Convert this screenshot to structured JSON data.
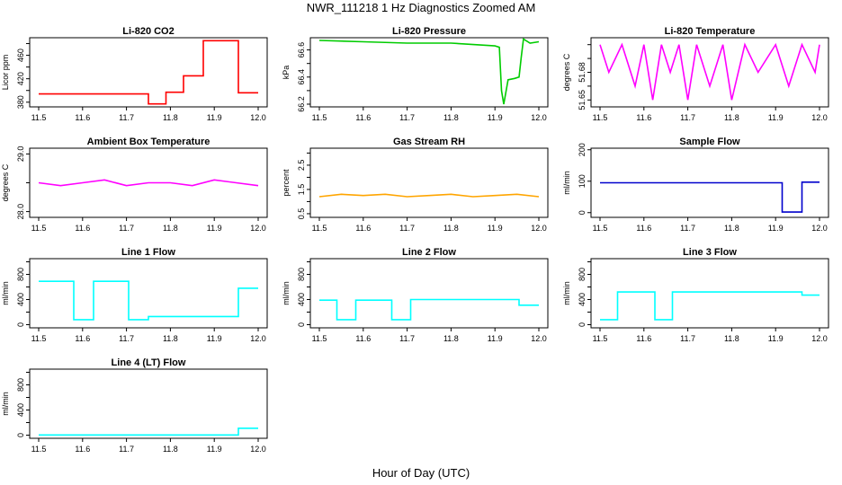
{
  "title": "NWR_111218  1 Hz Diagnostics Zoomed AM",
  "xlabel": "Hour of Day (UTC)",
  "chart_data": [
    {
      "type": "line",
      "title": "Li-820 CO2",
      "ylabel": "Licor ppm",
      "color": "#ff0000",
      "xlim": [
        11.5,
        12.0
      ],
      "xticks": [
        "11.5",
        "11.6",
        "11.7",
        "11.8",
        "11.9",
        "12.0"
      ],
      "ylim": [
        372,
        490
      ],
      "yticks": [
        380,
        400,
        420,
        440,
        460,
        480
      ],
      "yticklabels": [
        "380",
        "",
        "420",
        "",
        "460",
        ""
      ],
      "x": [
        11.5,
        11.75,
        11.75,
        11.79,
        11.79,
        11.83,
        11.83,
        11.875,
        11.875,
        11.955,
        11.955,
        12.0
      ],
      "y": [
        394,
        394,
        377,
        377,
        397,
        397,
        425,
        425,
        485,
        485,
        396,
        396
      ]
    },
    {
      "type": "line",
      "title": "Li-820 Pressure",
      "ylabel": "kPa",
      "color": "#00cc00",
      "xlim": [
        11.5,
        12.0
      ],
      "xticks": [
        "11.5",
        "11.6",
        "11.7",
        "11.8",
        "11.9",
        "12.0"
      ],
      "ylim": [
        66.18,
        66.69
      ],
      "yticks": [
        66.2,
        66.3,
        66.4,
        66.5,
        66.6
      ],
      "yticklabels": [
        "66.2",
        "",
        "66.4",
        "",
        "66.6"
      ],
      "x": [
        11.5,
        11.6,
        11.7,
        11.8,
        11.9,
        11.91,
        11.915,
        11.92,
        11.93,
        11.945,
        11.955,
        11.96,
        11.965,
        11.98,
        12.0
      ],
      "y": [
        66.67,
        66.66,
        66.65,
        66.65,
        66.63,
        66.62,
        66.3,
        66.2,
        66.38,
        66.39,
        66.4,
        66.55,
        66.68,
        66.65,
        66.66
      ]
    },
    {
      "type": "line",
      "title": "Li-820 Temperature",
      "ylabel": "degrees C",
      "color": "#ff00ff",
      "xlim": [
        11.5,
        12.0
      ],
      "xticks": [
        "11.5",
        "11.6",
        "11.7",
        "11.8",
        "11.9",
        "12.0"
      ],
      "ylim": [
        51.645,
        51.695
      ],
      "yticks": [
        51.65,
        51.66,
        51.67,
        51.68,
        51.69
      ],
      "yticklabels": [
        "51.65",
        "",
        "51.68",
        "",
        ""
      ],
      "x": [
        11.5,
        11.52,
        11.55,
        11.58,
        11.6,
        11.62,
        11.64,
        11.66,
        11.68,
        11.7,
        11.72,
        11.75,
        11.78,
        11.8,
        11.83,
        11.86,
        11.9,
        11.93,
        11.96,
        11.99,
        12.0
      ],
      "y": [
        51.69,
        51.67,
        51.69,
        51.66,
        51.69,
        51.65,
        51.69,
        51.67,
        51.69,
        51.65,
        51.69,
        51.66,
        51.69,
        51.65,
        51.69,
        51.67,
        51.69,
        51.66,
        51.69,
        51.67,
        51.69
      ]
    },
    {
      "type": "line",
      "title": "Ambient Box Temperature",
      "ylabel": "degrees C",
      "color": "#ff00ff",
      "xlim": [
        11.5,
        12.0
      ],
      "xticks": [
        "11.5",
        "11.6",
        "11.7",
        "11.8",
        "11.9",
        "12.0"
      ],
      "ylim": [
        27.9,
        29.1
      ],
      "yticks": [
        28.0,
        28.5,
        29.0
      ],
      "yticklabels": [
        "28.0",
        "",
        "29.0"
      ],
      "x": [
        11.5,
        11.55,
        11.6,
        11.65,
        11.7,
        11.75,
        11.8,
        11.85,
        11.9,
        11.95,
        12.0
      ],
      "y": [
        28.5,
        28.45,
        28.5,
        28.55,
        28.45,
        28.5,
        28.5,
        28.45,
        28.55,
        28.5,
        28.45
      ]
    },
    {
      "type": "line",
      "title": "Gas Stream RH",
      "ylabel": "percent",
      "color": "#ffa500",
      "xlim": [
        11.5,
        12.0
      ],
      "xticks": [
        "11.5",
        "11.6",
        "11.7",
        "11.8",
        "11.9",
        "12.0"
      ],
      "ylim": [
        0.35,
        3.2
      ],
      "yticks": [
        0.5,
        1.0,
        1.5,
        2.0,
        2.5,
        3.0
      ],
      "yticklabels": [
        "0.5",
        "",
        "1.5",
        "",
        "2.5",
        ""
      ],
      "x": [
        11.5,
        11.55,
        11.6,
        11.65,
        11.7,
        11.75,
        11.8,
        11.85,
        11.9,
        11.95,
        12.0
      ],
      "y": [
        1.2,
        1.3,
        1.25,
        1.3,
        1.2,
        1.25,
        1.3,
        1.2,
        1.25,
        1.3,
        1.2
      ]
    },
    {
      "type": "line",
      "title": "Sample Flow",
      "ylabel": "ml/min",
      "color": "#0000cc",
      "xlim": [
        11.5,
        12.0
      ],
      "xticks": [
        "11.5",
        "11.6",
        "11.7",
        "11.8",
        "11.9",
        "12.0"
      ],
      "ylim": [
        -15,
        205
      ],
      "yticks": [
        0,
        100,
        200
      ],
      "yticklabels": [
        "0",
        "100",
        "200"
      ],
      "x": [
        11.5,
        11.915,
        11.915,
        11.96,
        11.96,
        12.0
      ],
      "y": [
        95,
        95,
        2,
        2,
        97,
        97
      ]
    },
    {
      "type": "line",
      "title": "Line 1 Flow",
      "ylabel": "ml/min",
      "color": "#00ffff",
      "xlim": [
        11.5,
        12.0
      ],
      "xticks": [
        "11.5",
        "11.6",
        "11.7",
        "11.8",
        "11.9",
        "12.0"
      ],
      "ylim": [
        -50,
        1050
      ],
      "yticks": [
        0,
        200,
        400,
        600,
        800,
        1000
      ],
      "yticklabels": [
        "0",
        "",
        "400",
        "",
        "800",
        ""
      ],
      "x": [
        11.5,
        11.58,
        11.58,
        11.625,
        11.625,
        11.705,
        11.705,
        11.75,
        11.75,
        11.955,
        11.955,
        12.0
      ],
      "y": [
        690,
        690,
        80,
        80,
        690,
        690,
        80,
        80,
        130,
        130,
        580,
        580
      ]
    },
    {
      "type": "line",
      "title": "Line 2 Flow",
      "ylabel": "ml/min",
      "color": "#00ffff",
      "xlim": [
        11.5,
        12.0
      ],
      "xticks": [
        "11.5",
        "11.6",
        "11.7",
        "11.8",
        "11.9",
        "12.0"
      ],
      "ylim": [
        -50,
        1050
      ],
      "yticks": [
        0,
        200,
        400,
        600,
        800,
        1000
      ],
      "yticklabels": [
        "0",
        "",
        "400",
        "",
        "800",
        ""
      ],
      "x": [
        11.5,
        11.54,
        11.54,
        11.583,
        11.583,
        11.665,
        11.665,
        11.708,
        11.708,
        11.955,
        11.955,
        12.0
      ],
      "y": [
        390,
        390,
        80,
        80,
        390,
        390,
        80,
        80,
        400,
        400,
        310,
        310
      ]
    },
    {
      "type": "line",
      "title": "Line 3 Flow",
      "ylabel": "ml/min",
      "color": "#00ffff",
      "xlim": [
        11.5,
        12.0
      ],
      "xticks": [
        "11.5",
        "11.6",
        "11.7",
        "11.8",
        "11.9",
        "12.0"
      ],
      "ylim": [
        -50,
        1050
      ],
      "yticks": [
        0,
        200,
        400,
        600,
        800,
        1000
      ],
      "yticklabels": [
        "0",
        "",
        "400",
        "",
        "800",
        ""
      ],
      "x": [
        11.5,
        11.54,
        11.54,
        11.625,
        11.625,
        11.665,
        11.665,
        11.96,
        11.96,
        12.0
      ],
      "y": [
        80,
        80,
        520,
        520,
        80,
        80,
        520,
        520,
        470,
        470
      ]
    },
    {
      "type": "line",
      "title": "Line 4 (LT) Flow",
      "ylabel": "ml/min",
      "color": "#00ffff",
      "xlim": [
        11.5,
        12.0
      ],
      "xticks": [
        "11.5",
        "11.6",
        "11.7",
        "11.8",
        "11.9",
        "12.0"
      ],
      "ylim": [
        -50,
        1050
      ],
      "yticks": [
        0,
        200,
        400,
        600,
        800,
        1000
      ],
      "yticklabels": [
        "0",
        "",
        "400",
        "",
        "800",
        ""
      ],
      "x": [
        11.5,
        11.955,
        11.955,
        12.0
      ],
      "y": [
        3,
        3,
        110,
        110
      ]
    }
  ]
}
